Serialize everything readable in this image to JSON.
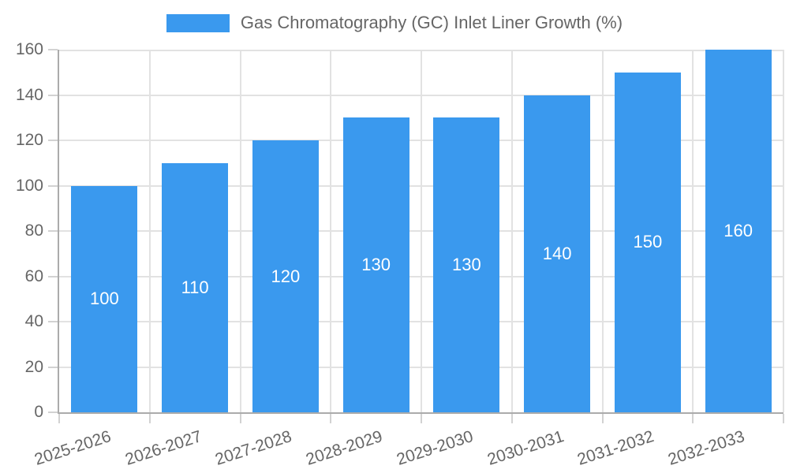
{
  "chart_data": {
    "type": "bar",
    "title": "Gas Chromatography (GC) Inlet Liner Growth (%)",
    "categories": [
      "2025-2026",
      "2026-2027",
      "2027-2028",
      "2028-2029",
      "2029-2030",
      "2030-2031",
      "2031-2032",
      "2032-2033"
    ],
    "values": [
      100,
      110,
      120,
      130,
      130,
      140,
      150,
      160
    ],
    "bar_labels": [
      "100",
      "110",
      "120",
      "130",
      "130",
      "140",
      "150",
      "160"
    ],
    "series": [
      {
        "name": "Gas Chromatography (GC) Inlet Liner Growth (%)",
        "values": [
          100,
          110,
          120,
          130,
          130,
          140,
          150,
          160
        ]
      }
    ],
    "xlabel": "",
    "ylabel": "",
    "ylim": [
      0,
      160
    ],
    "yticks": [
      0,
      20,
      40,
      60,
      80,
      100,
      120,
      140,
      160
    ],
    "grid": true,
    "legend_position": "top",
    "bar_color": "#3a99ee",
    "bar_label_color": "#ffffff",
    "axis_text_color": "#666666",
    "grid_color": "#e2e2e2",
    "axis_line_color": "#ababab",
    "tick_color": "#d2d2d2",
    "background": "#ffffff"
  }
}
